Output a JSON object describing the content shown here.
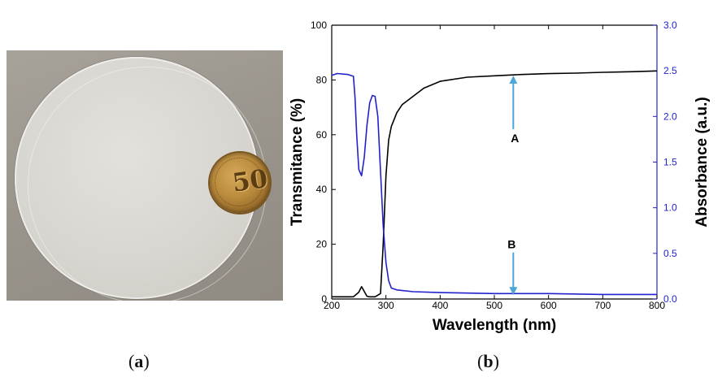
{
  "panel_a": {
    "caption_label": "a",
    "coin_text": "50"
  },
  "panel_b": {
    "caption_label": "b",
    "annotation_a": "A",
    "annotation_b": "B"
  },
  "colors": {
    "transmittance": "#000000",
    "absorbance": "#2222cc",
    "arrow": "#4da6d6"
  },
  "chart_data": {
    "type": "line",
    "xlabel": "Wavelength (nm)",
    "ylabel": "Transmitance (%)",
    "y2label": "Absorbance (a.u.)",
    "xlim": [
      200,
      800
    ],
    "ylim": [
      0,
      100
    ],
    "y2lim": [
      0,
      3.0
    ],
    "xticks": [
      200,
      300,
      400,
      500,
      600,
      700,
      800
    ],
    "yticks": [
      0,
      20,
      40,
      60,
      80,
      100
    ],
    "y2ticks": [
      "0.0",
      "0.5",
      "1.0",
      "1.5",
      "2.0",
      "2.5",
      "3.0"
    ],
    "grid": false,
    "series": [
      {
        "axis": "left",
        "x": [
          200,
          240,
          250,
          255,
          260,
          265,
          270,
          280,
          290,
          295,
          300,
          305,
          310,
          320,
          330,
          350,
          370,
          400,
          450,
          500,
          550,
          600,
          650,
          700,
          750,
          800
        ],
        "values": [
          0.8,
          0.8,
          2.5,
          4.5,
          2.8,
          1.0,
          0.8,
          0.8,
          2.0,
          20,
          45,
          58,
          63,
          68,
          71,
          74,
          77,
          79.5,
          81,
          81.5,
          82,
          82.3,
          82.5,
          82.8,
          83,
          83.3
        ]
      },
      {
        "axis": "right",
        "x": [
          200,
          210,
          230,
          240,
          243,
          246,
          250,
          255,
          260,
          265,
          270,
          275,
          280,
          285,
          290,
          295,
          300,
          305,
          310,
          320,
          350,
          400,
          500,
          600,
          700,
          800
        ],
        "values": [
          2.45,
          2.47,
          2.46,
          2.44,
          2.2,
          1.8,
          1.42,
          1.35,
          1.55,
          1.9,
          2.15,
          2.23,
          2.22,
          2.0,
          1.4,
          0.8,
          0.4,
          0.2,
          0.12,
          0.1,
          0.08,
          0.07,
          0.06,
          0.06,
          0.05,
          0.05
        ]
      }
    ],
    "annotations": [
      {
        "label": "A",
        "x": 535,
        "y_top": 81,
        "y_bottom": 62,
        "direction": "up"
      },
      {
        "label": "B",
        "x": 535,
        "y_top": 17,
        "y_bottom": 2,
        "direction": "down"
      }
    ]
  }
}
